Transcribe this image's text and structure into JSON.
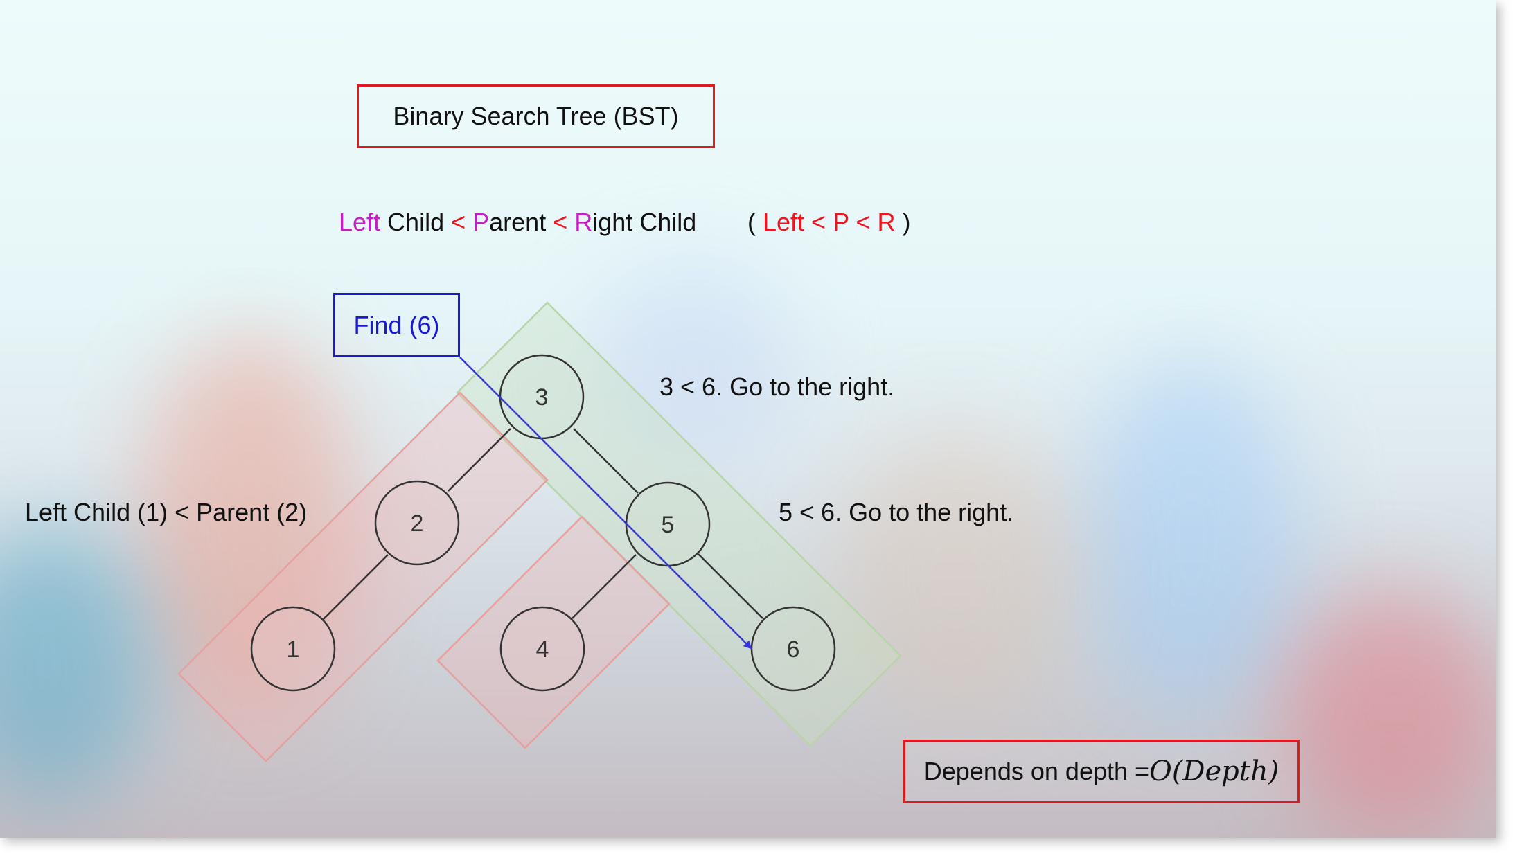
{
  "title": "Binary Search Tree (BST)",
  "rule": {
    "left_letter": "Left",
    "child1": " Child ",
    "lt1": " < ",
    "p_letter": "P",
    "p_rest": "arent ",
    "lt2": " < ",
    "r_letter": "R",
    "r_rest": "ight Child",
    "paren_open": "(",
    "short_form": " Left < P < R ",
    "paren_close": ")"
  },
  "find_label": "Find (6)",
  "nodes": {
    "n3": "3",
    "n2": "2",
    "n5": "5",
    "n1": "1",
    "n4": "4",
    "n6": "6"
  },
  "annotations": {
    "step1": "3 < 6. Go to the right.",
    "step2": "5 < 6. Go to the right.",
    "left_rule": "Left Child (1) < Parent (2)"
  },
  "complexity": {
    "text": "Depends on depth = ",
    "math": "O(Depth)"
  },
  "colors": {
    "red_border": "#e0191f",
    "blue": "#1a1ad6",
    "magenta": "#c41ec4",
    "red_text": "#f0141e",
    "green_region": "#b7d5a8",
    "pink_region": "#e6a0a0"
  }
}
